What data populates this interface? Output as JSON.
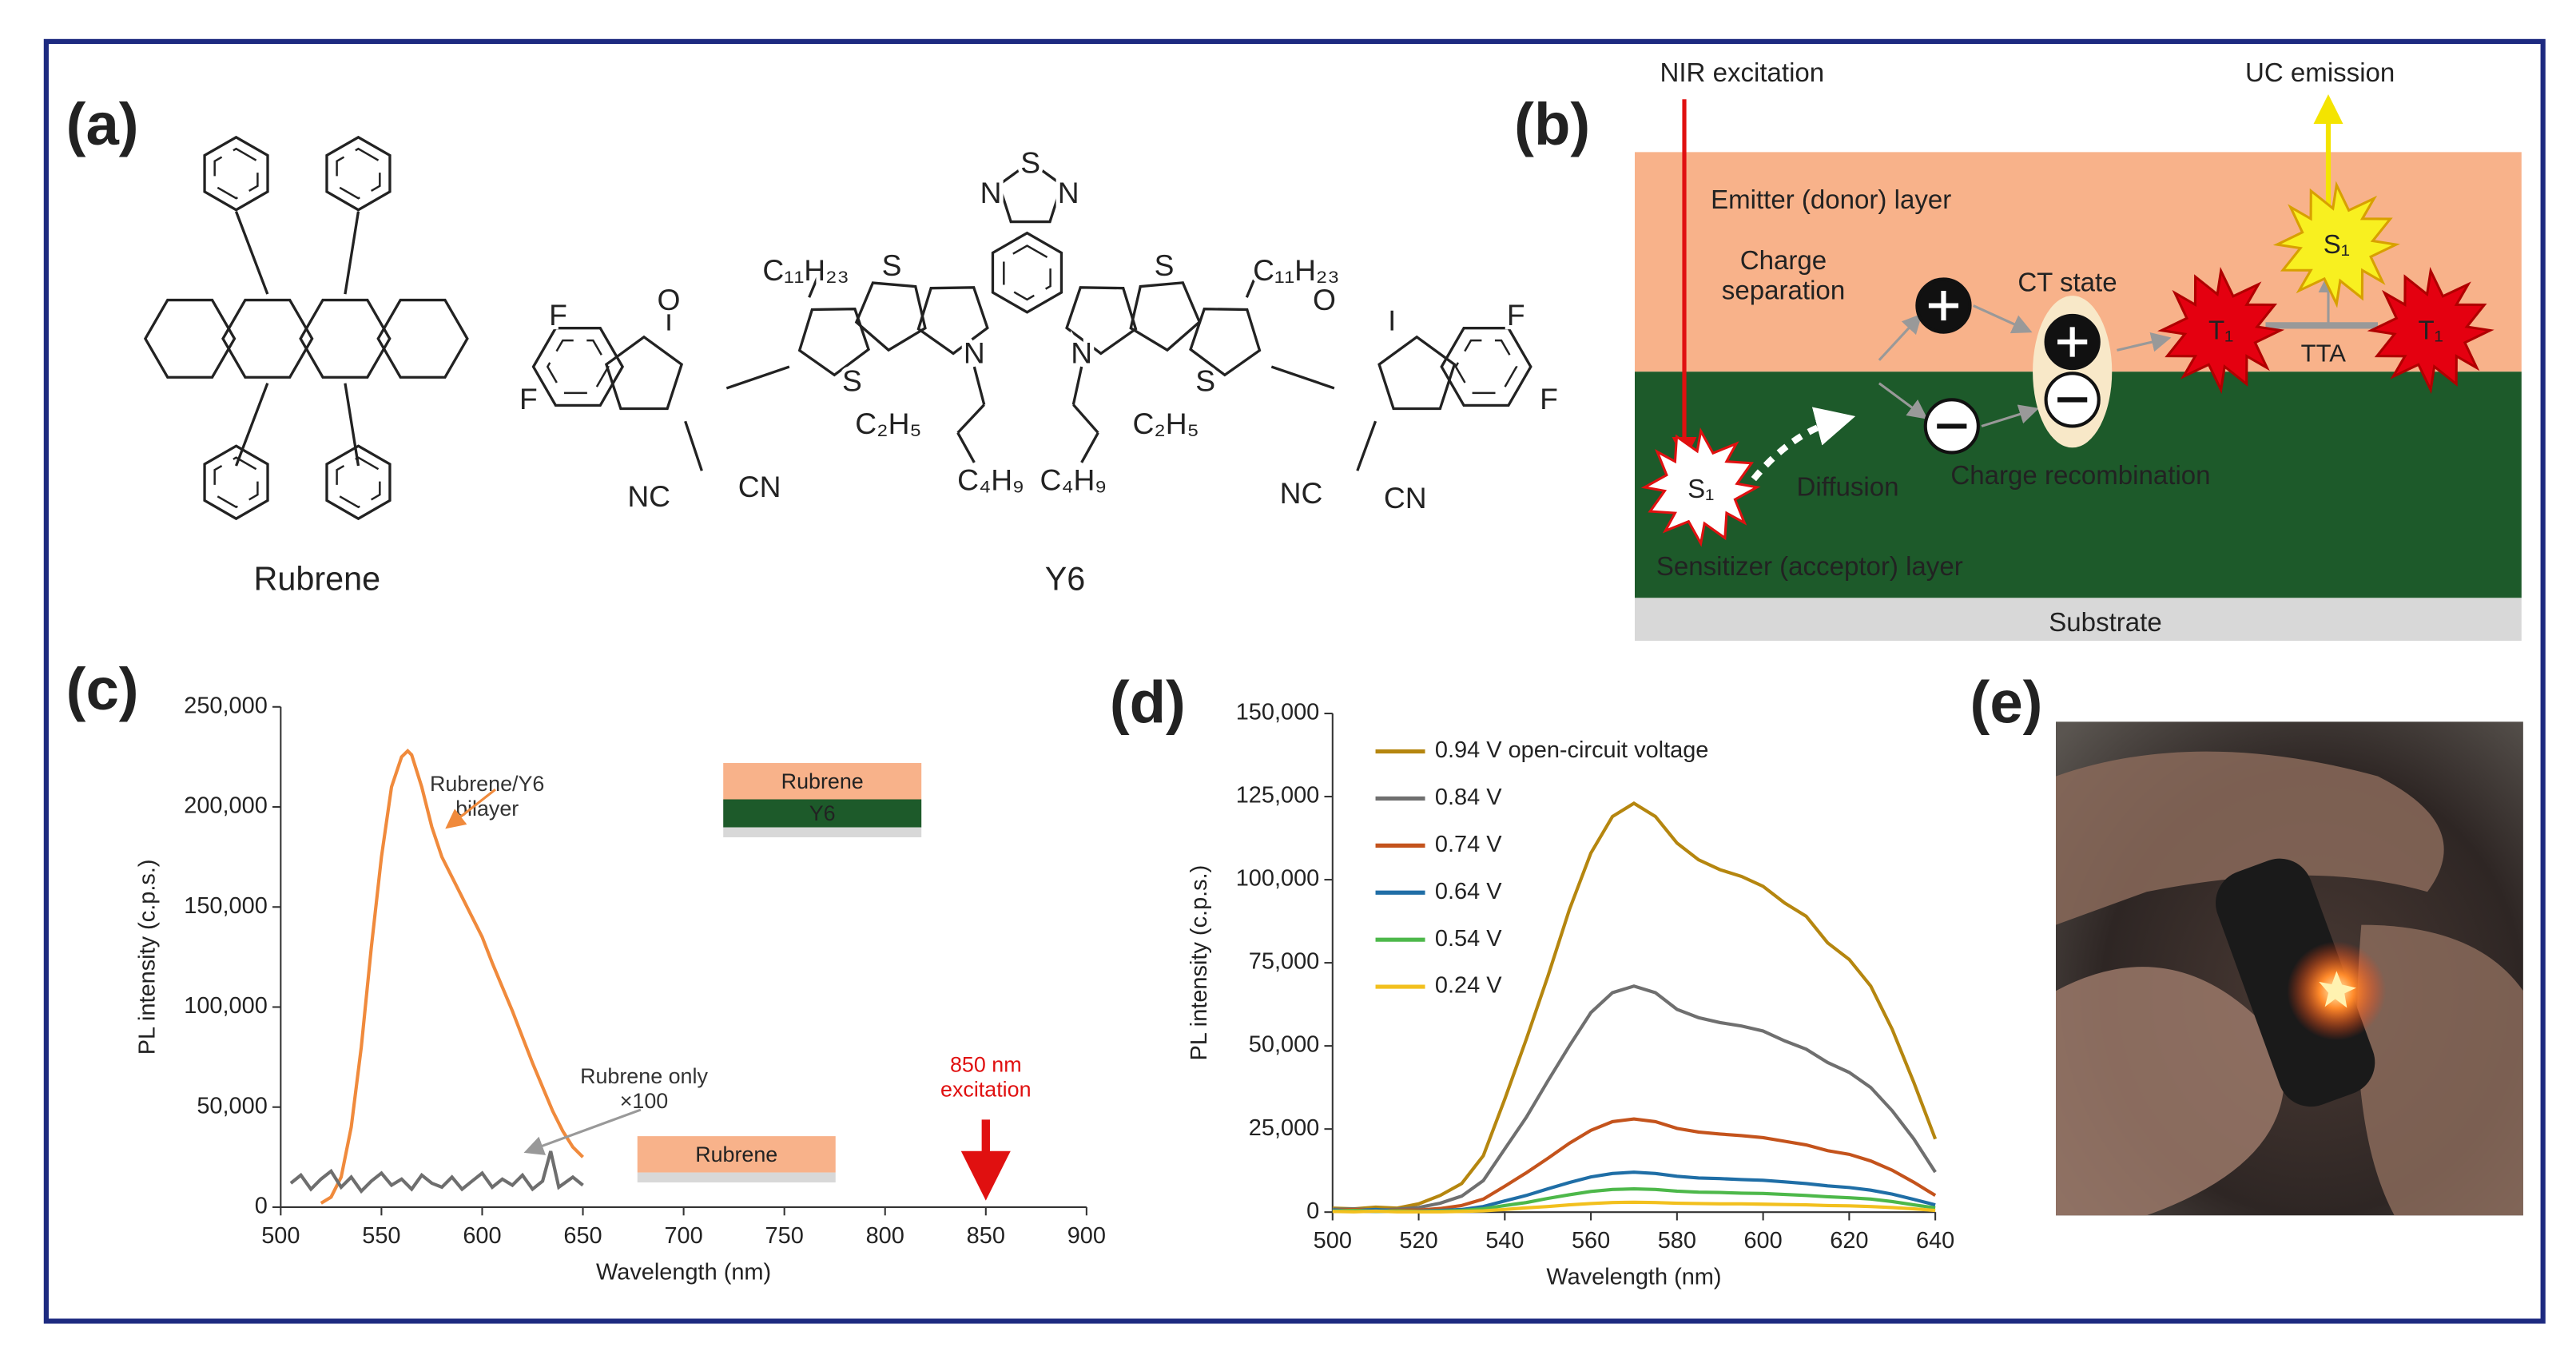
{
  "panel_labels": [
    "(a)",
    "(b)",
    "(c)",
    "(d)",
    "(e)"
  ],
  "molecules": {
    "names": [
      "Rubrene",
      "Y6"
    ],
    "atom_labels": [
      "S",
      "N",
      "N",
      "O",
      "O",
      "F",
      "F",
      "F",
      "F",
      "NC",
      "CN",
      "NC",
      "CN",
      "S",
      "S",
      "S",
      "S",
      "N",
      "N",
      "C₁₁H₂₃",
      "C₁₁H₂₃",
      "C₂H₅",
      "C₂H₅",
      "C₄H₉",
      "C₄H₉"
    ]
  },
  "diagram": {
    "nir_excitation": "NIR excitation",
    "uc_emission": "UC emission",
    "emitter_layer": "Emitter (donor) layer",
    "charge_separation": "Charge separation",
    "ct_state": "CT state",
    "tta": "TTA",
    "diffusion": "Diffusion",
    "charge_recombination": "Charge recombination",
    "sensitizer_layer": "Sensitizer (acceptor) layer",
    "substrate": "Substrate",
    "singlet": "S₁",
    "triplet": "T₁"
  },
  "chart_data": [
    {
      "type": "line",
      "x_label": "Wavelength (nm)",
      "y_label": "PL intensity (c.p.s.)",
      "xlim": [
        500,
        900
      ],
      "xticks": [
        500,
        550,
        600,
        650,
        700,
        750,
        800,
        850,
        900
      ],
      "ylim": [
        0,
        250000
      ],
      "yticks": [
        0,
        {
          "value": 50000,
          "label": "50,000"
        },
        {
          "value": 100000,
          "label": "100,000"
        },
        {
          "value": 150000,
          "label": "150,000"
        },
        {
          "value": 200000,
          "label": "200,000"
        },
        {
          "value": 250000,
          "label": "250,000"
        }
      ],
      "series": [
        {
          "name": "Rubrene/Y6 bilayer",
          "color": "#f08a3c",
          "x": [
            520,
            525,
            530,
            535,
            540,
            545,
            550,
            555,
            560,
            563,
            565,
            570,
            575,
            580,
            585,
            590,
            595,
            600,
            605,
            610,
            615,
            620,
            625,
            630,
            635,
            640,
            645,
            650
          ],
          "values": [
            2000,
            5000,
            15000,
            40000,
            80000,
            130000,
            175000,
            210000,
            225000,
            228000,
            226000,
            210000,
            190000,
            175000,
            165000,
            155000,
            145000,
            135000,
            122000,
            110000,
            98000,
            85000,
            72000,
            60000,
            48000,
            38000,
            30000,
            25000
          ]
        },
        {
          "name": "Rubrene only ×100",
          "color": "#6e6e6e",
          "x": [
            505,
            510,
            515,
            520,
            525,
            530,
            535,
            540,
            545,
            550,
            555,
            560,
            565,
            570,
            575,
            580,
            585,
            590,
            595,
            600,
            605,
            610,
            615,
            620,
            625,
            630,
            634,
            638,
            645,
            650
          ],
          "values": [
            12000,
            16000,
            9000,
            14000,
            18000,
            10000,
            15000,
            8000,
            13000,
            17000,
            11000,
            14000,
            9000,
            16000,
            12000,
            10000,
            15000,
            9000,
            13000,
            17000,
            10000,
            14000,
            11000,
            16000,
            9000,
            13000,
            28000,
            10000,
            15000,
            11000
          ]
        }
      ],
      "annotations": [
        "850 nm excitation"
      ],
      "insets": [
        [
          "Rubrene",
          "Y6"
        ],
        [
          "Rubrene"
        ]
      ]
    },
    {
      "type": "line",
      "x_label": "Wavelength (nm)",
      "y_label": "PL intensity (c.p.s.)",
      "xlim": [
        500,
        640
      ],
      "xticks": [
        500,
        520,
        540,
        560,
        580,
        600,
        620,
        640
      ],
      "ylim": [
        0,
        150000
      ],
      "yticks": [
        0,
        {
          "value": 25000,
          "label": "25,000"
        },
        {
          "value": 50000,
          "label": "50,000"
        },
        {
          "value": 75000,
          "label": "75,000"
        },
        {
          "value": 100000,
          "label": "100,000"
        },
        {
          "value": 125000,
          "label": "125,000"
        },
        {
          "value": 150000,
          "label": "150,000"
        }
      ],
      "legend": "upper left",
      "x": [
        500,
        505,
        510,
        515,
        520,
        525,
        530,
        535,
        540,
        545,
        550,
        555,
        560,
        565,
        570,
        575,
        580,
        585,
        590,
        595,
        600,
        605,
        610,
        615,
        620,
        625,
        630,
        635,
        640
      ],
      "series": [
        {
          "name": "0.94 V open-circuit voltage",
          "color": "#b5860f",
          "values": [
            1200,
            1000,
            1500,
            1200,
            2500,
            5000,
            8600,
            17000,
            34000,
            52000,
            71000,
            91000,
            108000,
            119000,
            123000,
            119000,
            111000,
            106000,
            103000,
            101000,
            98000,
            93000,
            89000,
            81000,
            76000,
            68000,
            55000,
            39000,
            22000
          ]
        },
        {
          "name": "0.84 V",
          "color": "#6f6f6f",
          "values": [
            800,
            1000,
            600,
            900,
            1400,
            2700,
            4800,
            9500,
            19000,
            28500,
            39500,
            50000,
            60000,
            66000,
            68000,
            66000,
            61000,
            58500,
            57000,
            56000,
            54500,
            51500,
            49000,
            45000,
            42000,
            37500,
            30500,
            22000,
            12000
          ]
        },
        {
          "name": "0.74 V",
          "color": "#c4531c",
          "values": [
            500,
            800,
            400,
            600,
            600,
            1100,
            2000,
            3900,
            7800,
            11800,
            16200,
            20700,
            24600,
            27200,
            28000,
            27200,
            25200,
            24100,
            23500,
            23000,
            22400,
            21300,
            20200,
            18500,
            17400,
            15400,
            12600,
            9000,
            5000
          ]
        },
        {
          "name": "0.64 V",
          "color": "#1f6ea6",
          "values": [
            600,
            300,
            800,
            200,
            300,
            500,
            800,
            1700,
            3400,
            5000,
            7000,
            8900,
            10600,
            11600,
            12000,
            11600,
            10800,
            10300,
            10100,
            9800,
            9600,
            9100,
            8600,
            7900,
            7400,
            6600,
            5400,
            3800,
            2200
          ]
        },
        {
          "name": "0.54 V",
          "color": "#4db84a",
          "values": [
            300,
            500,
            200,
            400,
            200,
            300,
            500,
            1000,
            2000,
            2900,
            4100,
            5200,
            6200,
            6800,
            7000,
            6800,
            6300,
            6000,
            5900,
            5700,
            5600,
            5300,
            5000,
            4600,
            4300,
            3900,
            3200,
            2200,
            1300
          ]
        },
        {
          "name": "0.24 V",
          "color": "#f2c01e",
          "values": [
            200,
            100,
            300,
            100,
            100,
            100,
            200,
            400,
            800,
            1300,
            1700,
            2200,
            2600,
            2900,
            3000,
            2900,
            2700,
            2600,
            2500,
            2500,
            2400,
            2300,
            2200,
            2000,
            1900,
            1700,
            1400,
            1000,
            500
          ]
        }
      ]
    }
  ]
}
